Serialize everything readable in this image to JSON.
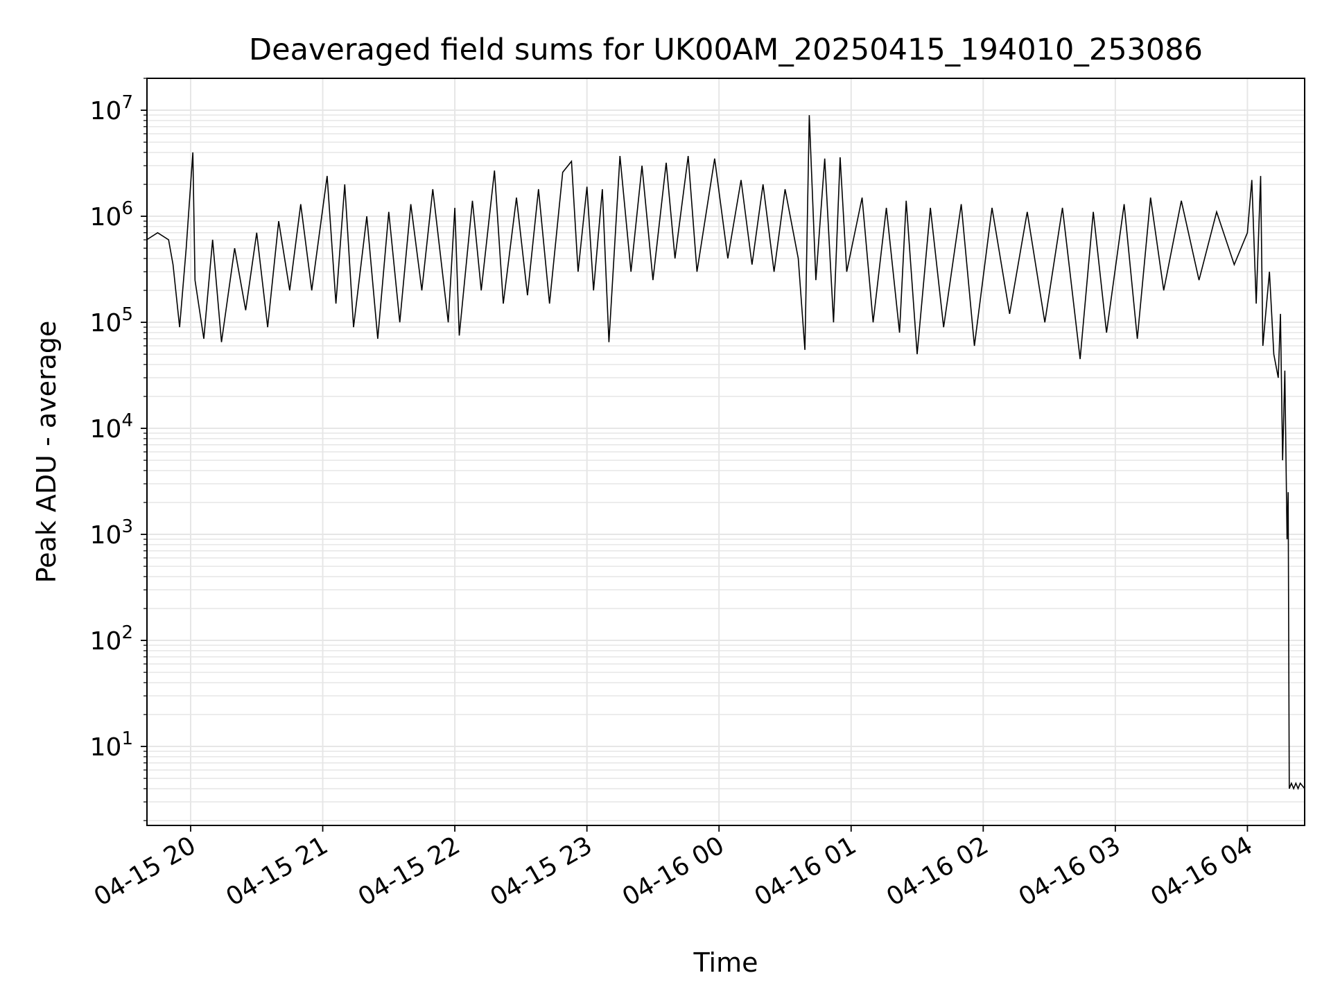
{
  "chart_data": {
    "type": "line",
    "title": "Deaveraged field sums for UK00AM_20250415_194010_253086",
    "xlabel": "Time",
    "ylabel": "Peak ADU - average",
    "yscale": "log",
    "ylim": [
      1.8,
      20000000
    ],
    "xlim": [
      "2025-04-15 19:40:10",
      "2025-04-16 04:26:00"
    ],
    "grid": true,
    "grid_color": "#e6e6e6",
    "line_color": "#000000",
    "x_ticks": [
      {
        "value": "2025-04-15 20:00",
        "label": "04-15 20"
      },
      {
        "value": "2025-04-15 21:00",
        "label": "04-15 21"
      },
      {
        "value": "2025-04-15 22:00",
        "label": "04-15 22"
      },
      {
        "value": "2025-04-15 23:00",
        "label": "04-15 23"
      },
      {
        "value": "2025-04-16 00:00",
        "label": "04-16 00"
      },
      {
        "value": "2025-04-16 01:00",
        "label": "04-16 01"
      },
      {
        "value": "2025-04-16 02:00",
        "label": "04-16 02"
      },
      {
        "value": "2025-04-16 03:00",
        "label": "04-16 03"
      },
      {
        "value": "2025-04-16 04:00",
        "label": "04-16 04"
      }
    ],
    "y_ticks": [
      {
        "value": 10,
        "base": "10",
        "exp": "1"
      },
      {
        "value": 100,
        "base": "10",
        "exp": "2"
      },
      {
        "value": 1000,
        "base": "10",
        "exp": "3"
      },
      {
        "value": 10000,
        "base": "10",
        "exp": "4"
      },
      {
        "value": 100000,
        "base": "10",
        "exp": "5"
      },
      {
        "value": 1000000,
        "base": "10",
        "exp": "6"
      },
      {
        "value": 10000000,
        "base": "10",
        "exp": "7"
      }
    ],
    "series": [
      {
        "points": [
          [
            "2025-04-15 19:40",
            600000
          ],
          [
            "2025-04-15 19:45",
            700000
          ],
          [
            "2025-04-15 19:50",
            600000
          ],
          [
            "2025-04-15 19:52",
            350000
          ],
          [
            "2025-04-15 19:55",
            90000
          ],
          [
            "2025-04-15 19:58",
            500000
          ],
          [
            "2025-04-15 20:01",
            4000000
          ],
          [
            "2025-04-15 20:02",
            250000
          ],
          [
            "2025-04-15 20:06",
            70000
          ],
          [
            "2025-04-15 20:10",
            600000
          ],
          [
            "2025-04-15 20:14",
            65000
          ],
          [
            "2025-04-15 20:20",
            500000
          ],
          [
            "2025-04-15 20:25",
            130000
          ],
          [
            "2025-04-15 20:30",
            700000
          ],
          [
            "2025-04-15 20:35",
            90000
          ],
          [
            "2025-04-15 20:40",
            900000
          ],
          [
            "2025-04-15 20:45",
            200000
          ],
          [
            "2025-04-15 20:50",
            1300000
          ],
          [
            "2025-04-15 20:55",
            200000
          ],
          [
            "2025-04-15 21:02",
            2400000
          ],
          [
            "2025-04-15 21:06",
            150000
          ],
          [
            "2025-04-15 21:10",
            2000000
          ],
          [
            "2025-04-15 21:14",
            90000
          ],
          [
            "2025-04-15 21:20",
            1000000
          ],
          [
            "2025-04-15 21:25",
            70000
          ],
          [
            "2025-04-15 21:30",
            1100000
          ],
          [
            "2025-04-15 21:35",
            100000
          ],
          [
            "2025-04-15 21:40",
            1300000
          ],
          [
            "2025-04-15 21:45",
            200000
          ],
          [
            "2025-04-15 21:50",
            1800000
          ],
          [
            "2025-04-15 21:57",
            100000
          ],
          [
            "2025-04-15 22:00",
            1200000
          ],
          [
            "2025-04-15 22:02",
            75000
          ],
          [
            "2025-04-15 22:08",
            1400000
          ],
          [
            "2025-04-15 22:12",
            200000
          ],
          [
            "2025-04-15 22:18",
            2700000
          ],
          [
            "2025-04-15 22:22",
            150000
          ],
          [
            "2025-04-15 22:28",
            1500000
          ],
          [
            "2025-04-15 22:33",
            180000
          ],
          [
            "2025-04-15 22:38",
            1800000
          ],
          [
            "2025-04-15 22:43",
            150000
          ],
          [
            "2025-04-15 22:49",
            2600000
          ],
          [
            "2025-04-15 22:53",
            3300000
          ],
          [
            "2025-04-15 22:56",
            300000
          ],
          [
            "2025-04-15 23:00",
            1900000
          ],
          [
            "2025-04-15 23:03",
            200000
          ],
          [
            "2025-04-15 23:07",
            1800000
          ],
          [
            "2025-04-15 23:10",
            65000
          ],
          [
            "2025-04-15 23:15",
            3700000
          ],
          [
            "2025-04-15 23:20",
            300000
          ],
          [
            "2025-04-15 23:25",
            3000000
          ],
          [
            "2025-04-15 23:30",
            250000
          ],
          [
            "2025-04-15 23:36",
            3200000
          ],
          [
            "2025-04-15 23:40",
            400000
          ],
          [
            "2025-04-15 23:46",
            3700000
          ],
          [
            "2025-04-15 23:50",
            300000
          ],
          [
            "2025-04-15 23:58",
            3500000
          ],
          [
            "2025-04-16 00:04",
            400000
          ],
          [
            "2025-04-16 00:10",
            2200000
          ],
          [
            "2025-04-16 00:15",
            350000
          ],
          [
            "2025-04-16 00:20",
            2000000
          ],
          [
            "2025-04-16 00:25",
            300000
          ],
          [
            "2025-04-16 00:30",
            1800000
          ],
          [
            "2025-04-16 00:36",
            400000
          ],
          [
            "2025-04-16 00:39",
            55000
          ],
          [
            "2025-04-16 00:41",
            9000000
          ],
          [
            "2025-04-16 00:44",
            250000
          ],
          [
            "2025-04-16 00:48",
            3500000
          ],
          [
            "2025-04-16 00:52",
            100000
          ],
          [
            "2025-04-16 00:55",
            3600000
          ],
          [
            "2025-04-16 00:58",
            300000
          ],
          [
            "2025-04-16 01:05",
            1500000
          ],
          [
            "2025-04-16 01:10",
            100000
          ],
          [
            "2025-04-16 01:16",
            1200000
          ],
          [
            "2025-04-16 01:22",
            80000
          ],
          [
            "2025-04-16 01:25",
            1400000
          ],
          [
            "2025-04-16 01:30",
            50000
          ],
          [
            "2025-04-16 01:36",
            1200000
          ],
          [
            "2025-04-16 01:42",
            90000
          ],
          [
            "2025-04-16 01:50",
            1300000
          ],
          [
            "2025-04-16 01:56",
            60000
          ],
          [
            "2025-04-16 02:04",
            1200000
          ],
          [
            "2025-04-16 02:12",
            120000
          ],
          [
            "2025-04-16 02:20",
            1100000
          ],
          [
            "2025-04-16 02:28",
            100000
          ],
          [
            "2025-04-16 02:36",
            1200000
          ],
          [
            "2025-04-16 02:44",
            45000
          ],
          [
            "2025-04-16 02:50",
            1100000
          ],
          [
            "2025-04-16 02:56",
            80000
          ],
          [
            "2025-04-16 03:04",
            1300000
          ],
          [
            "2025-04-16 03:10",
            70000
          ],
          [
            "2025-04-16 03:16",
            1500000
          ],
          [
            "2025-04-16 03:22",
            200000
          ],
          [
            "2025-04-16 03:30",
            1400000
          ],
          [
            "2025-04-16 03:38",
            250000
          ],
          [
            "2025-04-16 03:46",
            1100000
          ],
          [
            "2025-04-16 03:54",
            350000
          ],
          [
            "2025-04-16 04:00",
            700000
          ],
          [
            "2025-04-16 04:02",
            2200000
          ],
          [
            "2025-04-16 04:04",
            150000
          ],
          [
            "2025-04-16 04:06",
            2400000
          ],
          [
            "2025-04-16 04:07",
            60000
          ],
          [
            "2025-04-16 04:10",
            300000
          ],
          [
            "2025-04-16 04:12",
            50000
          ],
          [
            "2025-04-16 04:14",
            30000
          ],
          [
            "2025-04-16 04:15",
            120000
          ],
          [
            "2025-04-16 04:16",
            5000
          ],
          [
            "2025-04-16 04:17",
            35000
          ],
          [
            "2025-04-16 04:18",
            900
          ],
          [
            "2025-04-16 04:18:30",
            2500
          ],
          [
            "2025-04-16 04:19",
            4
          ],
          [
            "2025-04-16 04:20",
            4.5
          ],
          [
            "2025-04-16 04:21",
            4
          ],
          [
            "2025-04-16 04:22",
            4.5
          ],
          [
            "2025-04-16 04:23",
            4
          ],
          [
            "2025-04-16 04:24",
            4.5
          ],
          [
            "2025-04-16 04:26",
            4
          ]
        ]
      }
    ]
  }
}
